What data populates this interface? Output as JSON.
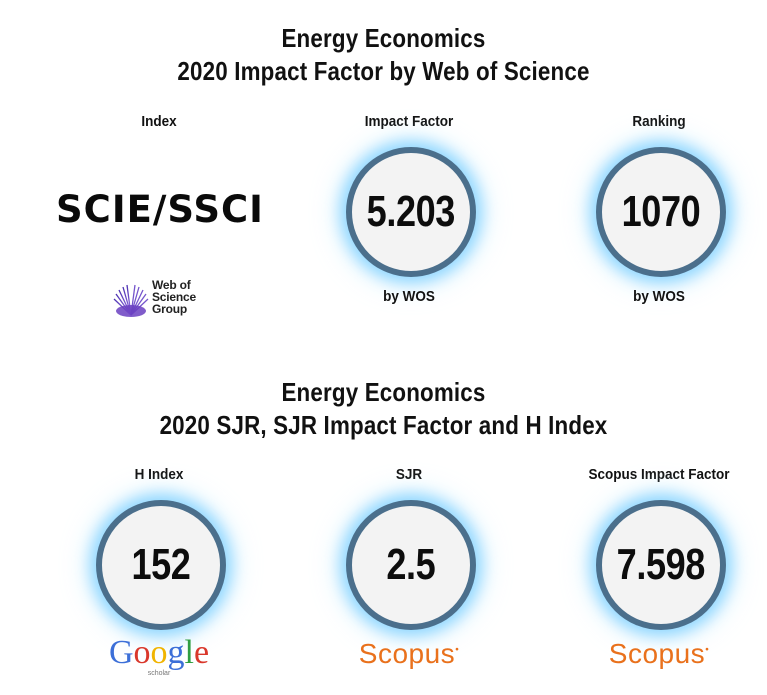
{
  "section1": {
    "title_line1": "Energy Economics",
    "title_line2": "2020 Impact Factor by Web of Science",
    "index_label": "Index",
    "index_value": "SCIE/SSCI",
    "wos_logo_text": [
      "Web of",
      "Science",
      "Group"
    ],
    "impact_label": "Impact Factor",
    "impact_value": "5.203",
    "impact_sub": "by WOS",
    "ranking_label": "Ranking",
    "ranking_value": "1070",
    "ranking_sub": "by WOS"
  },
  "section2": {
    "title_line1": "Energy Economics",
    "title_line2": "2020 SJR, SJR Impact Factor and H Index",
    "hindex_label": "H Index",
    "hindex_value": "152",
    "google_logo": "Google",
    "google_sub": "scholar",
    "sjr_label": "SJR",
    "sjr_value": "2.5",
    "scopus_logo": "Scopus",
    "scopus_if_label": "Scopus Impact Factor",
    "scopus_if_value": "7.598",
    "scopus_logo2": "Scopus"
  },
  "colors": {
    "circle_border": "#4b6f8c",
    "circle_glow": "#78cdff",
    "scopus_orange": "#e9711c",
    "wos_purple": "#6a3fc1"
  }
}
